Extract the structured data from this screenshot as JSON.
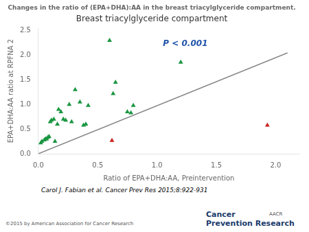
{
  "chart_data": {
    "type": "scatter",
    "title": "Changes in the ratio of (EPA+DHA):AA in the breast triacylglyceride compartment.",
    "subtitle": "Breast triacylglyceride compartment",
    "xlabel": "Ratio of EPA+DHA:AA, Preintervention",
    "ylabel": "EPA+DHA:AA ratio at RPFNA 2",
    "xlim": [
      0.0,
      2.2
    ],
    "ylim": [
      0.0,
      2.55
    ],
    "xticks": [
      {
        "value": 0.0,
        "label": "0.0"
      },
      {
        "value": 0.5,
        "label": "0.5"
      },
      {
        "value": 1.0,
        "label": "1.0"
      },
      {
        "value": 1.5,
        "label": "1.5"
      },
      {
        "value": 2.0,
        "label": "2.0"
      }
    ],
    "yticks": [
      {
        "value": 0.0,
        "label": "0.0"
      },
      {
        "value": 0.5,
        "label": "0.5"
      },
      {
        "value": 1.0,
        "label": "1.0"
      },
      {
        "value": 1.5,
        "label": "1.5"
      },
      {
        "value": 2.0,
        "label": "2.0"
      },
      {
        "value": 2.5,
        "label": "2.5"
      }
    ],
    "grid": false,
    "series": [
      {
        "type": "line",
        "color": "#888888",
        "x": [
          0.0,
          2.1
        ],
        "values": [
          0.0,
          2.05
        ]
      },
      {
        "type": "scatter",
        "marker": "triangle",
        "color": "#1a9641",
        "x": [
          0.02,
          0.03,
          0.05,
          0.06,
          0.07,
          0.08,
          0.09,
          0.1,
          0.11,
          0.13,
          0.14,
          0.16,
          0.17,
          0.19,
          0.21,
          0.23,
          0.26,
          0.28,
          0.31,
          0.35,
          0.38,
          0.4,
          0.42,
          0.6,
          0.63,
          0.65,
          0.75,
          0.78,
          0.8,
          1.2
        ],
        "values": [
          0.22,
          0.25,
          0.28,
          0.3,
          0.3,
          0.33,
          0.35,
          0.65,
          0.68,
          0.7,
          0.25,
          0.6,
          0.9,
          0.85,
          0.7,
          0.68,
          1.0,
          0.65,
          1.3,
          1.05,
          0.58,
          0.6,
          0.98,
          2.3,
          1.22,
          1.45,
          0.85,
          0.83,
          0.98,
          1.86
        ]
      },
      {
        "type": "scatter",
        "marker": "triangle",
        "color": "#cc2222",
        "x": [
          0.62,
          1.93
        ],
        "values": [
          0.27,
          0.58
        ]
      }
    ],
    "annotations": [
      {
        "text": "P < 0.001",
        "x": 1.05,
        "y": 2.15,
        "color": "#2255aa"
      }
    ],
    "citation": "Carol J. Fabian et al. Cancer Prev Res 2015;8:922-931",
    "footer": [
      "©2015 by American Association for Cancer Research",
      "Cancer",
      "Prevention Research",
      "AACR"
    ]
  }
}
